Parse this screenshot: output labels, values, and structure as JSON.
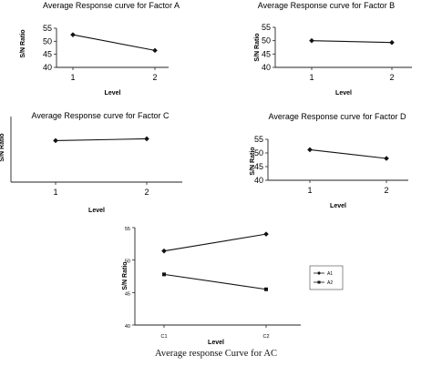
{
  "caption": "Average response Curve for AC",
  "chart_data": [
    {
      "id": "factor-a",
      "type": "line",
      "title": "Average Response curve for Factor A",
      "xlabel": "Level",
      "ylabel": "S/N Ratio",
      "categories": [
        "1",
        "2"
      ],
      "y_ticks": [
        "40",
        "45",
        "50",
        "55"
      ],
      "ylim": [
        40,
        55
      ],
      "series": [
        {
          "values": [
            52.5,
            46.5
          ]
        }
      ]
    },
    {
      "id": "factor-b",
      "type": "line",
      "title": "Average Response curve for Factor B",
      "xlabel": "Level",
      "ylabel": "S/N Ratio",
      "categories": [
        "1",
        "2"
      ],
      "y_ticks": [
        "40",
        "45",
        "50",
        "55"
      ],
      "ylim": [
        40,
        55
      ],
      "series": [
        {
          "values": [
            50,
            49.3
          ]
        }
      ]
    },
    {
      "id": "factor-c",
      "type": "line",
      "title": "Average Response curve for Factor C",
      "xlabel": "Level",
      "ylabel": "S/N Ratio",
      "categories": [
        "1",
        "2"
      ],
      "y_ticks": [],
      "ylim": [
        40,
        55
      ],
      "series": [
        {
          "values": [
            49.5,
            49.9
          ]
        }
      ]
    },
    {
      "id": "factor-d",
      "type": "line",
      "title": "Average Response curve for Factor D",
      "xlabel": "Level",
      "ylabel": "S/N Ratio",
      "categories": [
        "1",
        "2"
      ],
      "y_ticks": [
        "40",
        "45",
        "50",
        "55"
      ],
      "ylim": [
        40,
        55
      ],
      "series": [
        {
          "values": [
            51.2,
            48
          ]
        }
      ]
    },
    {
      "id": "interaction-ac",
      "type": "line",
      "title": "",
      "xlabel": "Level",
      "ylabel": "S/N Ratio",
      "categories": [
        "C1",
        "C2"
      ],
      "y_ticks": [
        "40",
        "45",
        "50",
        "55"
      ],
      "ylim": [
        40,
        55
      ],
      "legend": "right",
      "series": [
        {
          "name": "A1",
          "values": [
            51.4,
            54
          ]
        },
        {
          "name": "A2",
          "values": [
            47.8,
            45.5
          ]
        }
      ]
    }
  ]
}
